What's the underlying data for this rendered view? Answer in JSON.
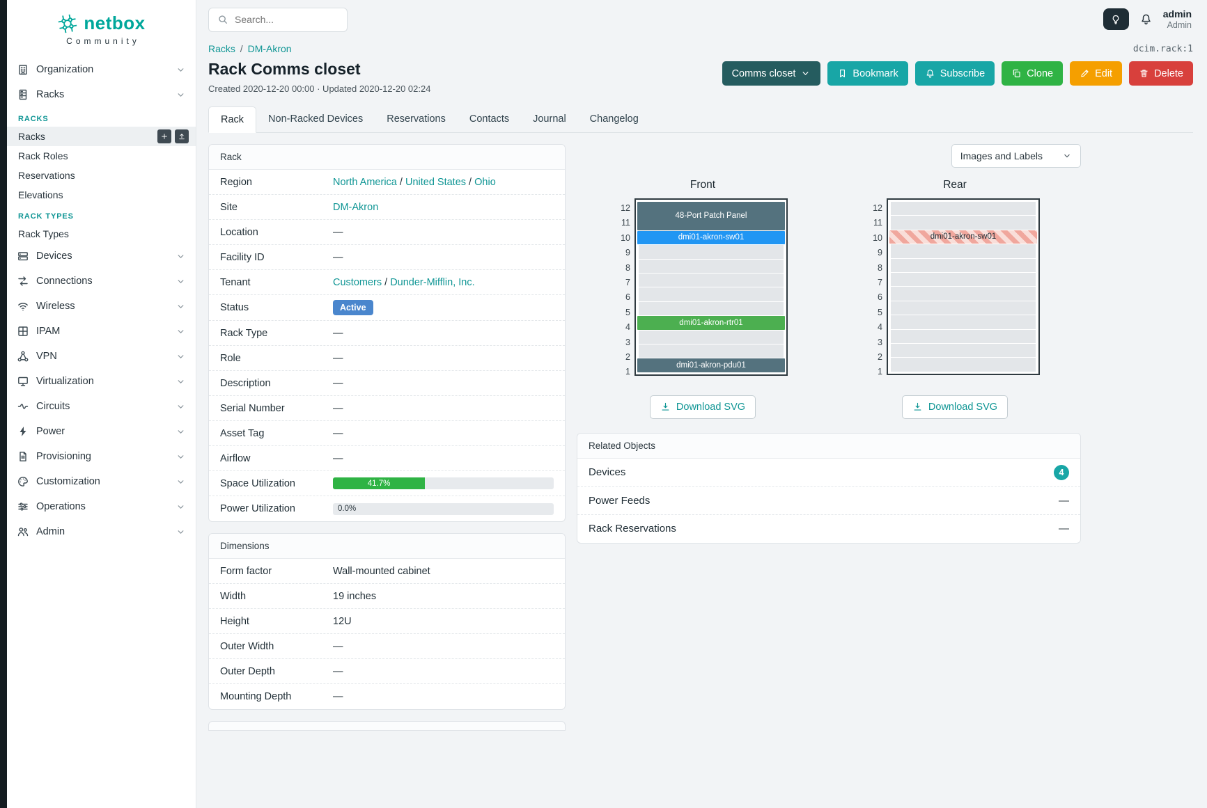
{
  "colors": {
    "brand_teal": "#00a79b",
    "link_teal": "#0e9594",
    "accent_teal": "#18a6a6",
    "dark_teal": "#255c5f",
    "green": "#2fb344",
    "orange": "#f59f00",
    "red": "#d8403c",
    "status_blue": "#4a86cd"
  },
  "sidebar": {
    "brand": {
      "name": "netbox",
      "tagline": "Community"
    },
    "nav_top": [
      {
        "label": "Organization",
        "icon": "organization-icon"
      },
      {
        "label": "Racks",
        "icon": "racks-icon"
      }
    ],
    "submenu_sections": [
      {
        "title": "RACKS",
        "items": [
          {
            "label": "Racks",
            "active": true
          },
          {
            "label": "Rack Roles"
          },
          {
            "label": "Reservations"
          },
          {
            "label": "Elevations"
          }
        ]
      },
      {
        "title": "RACK TYPES",
        "items": [
          {
            "label": "Rack Types"
          }
        ]
      }
    ],
    "nav_rest": [
      {
        "label": "Devices",
        "icon": "devices-icon"
      },
      {
        "label": "Connections",
        "icon": "connections-icon"
      },
      {
        "label": "Wireless",
        "icon": "wireless-icon"
      },
      {
        "label": "IPAM",
        "icon": "ipam-icon"
      },
      {
        "label": "VPN",
        "icon": "vpn-icon"
      },
      {
        "label": "Virtualization",
        "icon": "virtualization-icon"
      },
      {
        "label": "Circuits",
        "icon": "circuits-icon"
      },
      {
        "label": "Power",
        "icon": "power-icon"
      },
      {
        "label": "Provisioning",
        "icon": "provisioning-icon"
      },
      {
        "label": "Customization",
        "icon": "customization-icon"
      },
      {
        "label": "Operations",
        "icon": "operations-icon"
      },
      {
        "label": "Admin",
        "icon": "admin-icon"
      }
    ]
  },
  "topbar": {
    "search_placeholder": "Search...",
    "user_name": "admin",
    "user_role": "Admin"
  },
  "page": {
    "breadcrumbs": [
      {
        "label": "Racks"
      },
      {
        "label": "DM-Akron"
      }
    ],
    "object_ref": "dcim.rack:1",
    "title": "Rack Comms closet",
    "meta": "Created 2020-12-20 00:00 · Updated 2020-12-20 02:24",
    "actions": [
      {
        "label": "Comms closet",
        "style": "dark-teal",
        "icon": "chevron-down-icon"
      },
      {
        "label": "Bookmark",
        "style": "teal",
        "icon": "bookmark-icon"
      },
      {
        "label": "Subscribe",
        "style": "teal",
        "icon": "bell-icon"
      },
      {
        "label": "Clone",
        "style": "green",
        "icon": "copy-icon"
      },
      {
        "label": "Edit",
        "style": "orange",
        "icon": "pencil-icon"
      },
      {
        "label": "Delete",
        "style": "red",
        "icon": "trash-icon"
      }
    ],
    "tabs": [
      {
        "label": "Rack",
        "active": true
      },
      {
        "label": "Non-Racked Devices"
      },
      {
        "label": "Reservations"
      },
      {
        "label": "Contacts"
      },
      {
        "label": "Journal"
      },
      {
        "label": "Changelog"
      }
    ]
  },
  "rack_panel": {
    "title": "Rack",
    "rows": [
      {
        "label": "Region",
        "type": "links",
        "links": [
          "North America",
          "United States",
          "Ohio"
        ]
      },
      {
        "label": "Site",
        "type": "links",
        "links": [
          "DM-Akron"
        ]
      },
      {
        "label": "Location",
        "type": "text",
        "value": "—"
      },
      {
        "label": "Facility ID",
        "type": "text",
        "value": "—"
      },
      {
        "label": "Tenant",
        "type": "links",
        "links": [
          "Customers",
          "Dunder-Mifflin, Inc."
        ]
      },
      {
        "label": "Status",
        "type": "badge",
        "value": "Active"
      },
      {
        "label": "Rack Type",
        "type": "text",
        "value": "—"
      },
      {
        "label": "Role",
        "type": "text",
        "value": "—"
      },
      {
        "label": "Description",
        "type": "text",
        "value": "—"
      },
      {
        "label": "Serial Number",
        "type": "text",
        "value": "—"
      },
      {
        "label": "Asset Tag",
        "type": "text",
        "value": "—"
      },
      {
        "label": "Airflow",
        "type": "text",
        "value": "—"
      },
      {
        "label": "Space Utilization",
        "type": "progress",
        "percent": 41.7,
        "value": "41.7%"
      },
      {
        "label": "Power Utilization",
        "type": "progress",
        "percent": 0,
        "value": "0.0%"
      }
    ]
  },
  "dimensions_panel": {
    "title": "Dimensions",
    "rows": [
      {
        "label": "Form factor",
        "type": "text",
        "value": "Wall-mounted cabinet"
      },
      {
        "label": "Width",
        "type": "text",
        "value": "19 inches"
      },
      {
        "label": "Height",
        "type": "text",
        "value": "12U"
      },
      {
        "label": "Outer Width",
        "type": "text",
        "value": "—"
      },
      {
        "label": "Outer Depth",
        "type": "text",
        "value": "—"
      },
      {
        "label": "Mounting Depth",
        "type": "text",
        "value": "—"
      }
    ]
  },
  "elevations": {
    "view_selector": "Images and Labels",
    "download_label": "Download SVG",
    "unit_count": 12,
    "front": {
      "title": "Front",
      "devices": [
        {
          "name": "48-Port Patch Panel",
          "top_unit": 12,
          "u_height": 2,
          "color": "#54727e",
          "text_color": "#ffffff"
        },
        {
          "name": "dmi01-akron-sw01",
          "top_unit": 10,
          "u_height": 1,
          "color": "#2196f3",
          "text_color": "#ffffff"
        },
        {
          "name": "dmi01-akron-rtr01",
          "top_unit": 4,
          "u_height": 1,
          "color": "#4caf50",
          "text_color": "#ffffff"
        },
        {
          "name": "dmi01-akron-pdu01",
          "top_unit": 1,
          "u_height": 1,
          "color": "#54727e",
          "text_color": "#ffffff"
        }
      ]
    },
    "rear": {
      "title": "Rear",
      "devices": [
        {
          "name": "dmi01-akron-sw01",
          "top_unit": 10,
          "u_height": 1,
          "pattern": "stripes",
          "text_color": "#1f2d35"
        }
      ]
    }
  },
  "related_objects": {
    "title": "Related Objects",
    "rows": [
      {
        "label": "Devices",
        "type": "badge",
        "value": "4"
      },
      {
        "label": "Power Feeds",
        "type": "text",
        "value": "—"
      },
      {
        "label": "Rack Reservations",
        "type": "text",
        "value": "—"
      }
    ]
  }
}
